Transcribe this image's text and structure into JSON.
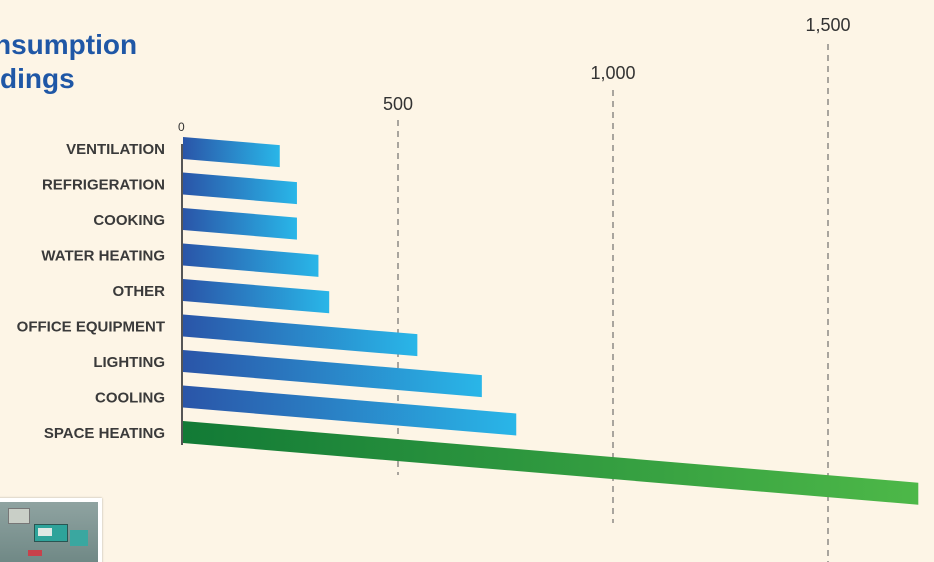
{
  "title": {
    "line1": "nsumption",
    "line2": "dings"
  },
  "chart_data": {
    "type": "bar",
    "orientation": "horizontal",
    "categories": [
      "VENTILATION",
      "REFRIGERATION",
      "COOKING",
      "WATER HEATING",
      "OTHER",
      "OFFICE EQUIPMENT",
      "LIGHTING",
      "COOLING",
      "SPACE HEATING"
    ],
    "values": [
      225,
      265,
      265,
      315,
      340,
      545,
      695,
      775,
      1710
    ],
    "x_ticks": [
      {
        "value": 0,
        "label": "0"
      },
      {
        "value": 500,
        "label": "500"
      },
      {
        "value": 1000,
        "label": "1,000"
      },
      {
        "value": 1500,
        "label": "1,500"
      }
    ],
    "xlim": [
      0,
      1710
    ],
    "grid": "dashed vertical lines at 500, 1,000 and 1,500",
    "colors": {
      "bar_dark": "#2a55a8",
      "bar_light": "#29b6e8",
      "highlight_dark": "#127a36",
      "highlight_light": "#4db848",
      "title": "#1f57a6"
    }
  }
}
